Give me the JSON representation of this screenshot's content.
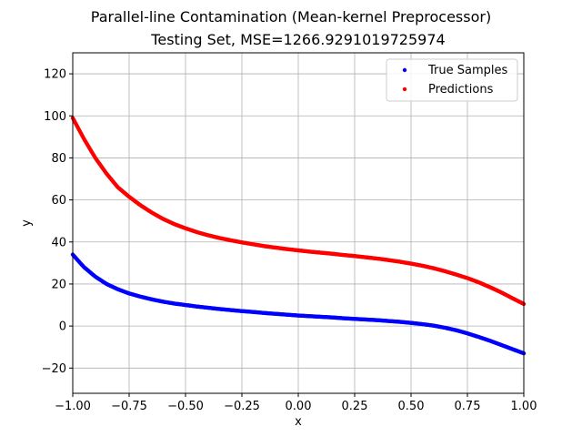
{
  "chart_data": {
    "type": "scatter",
    "title": "Parallel-line Contamination (Mean-kernel Preprocessor)",
    "subtitle": "Testing Set, MSE=1266.9291019725974",
    "xlabel": "x",
    "ylabel": "y",
    "xlim": [
      -1.0,
      1.0
    ],
    "ylim": [
      -32,
      130
    ],
    "x_ticks": [
      -1.0,
      -0.75,
      -0.5,
      -0.25,
      0.0,
      0.25,
      0.5,
      0.75,
      1.0
    ],
    "x_tick_labels": [
      "−1.00",
      "−0.75",
      "−0.50",
      "−0.25",
      "0.00",
      "0.25",
      "0.50",
      "0.75",
      "1.00"
    ],
    "y_ticks": [
      -20,
      0,
      20,
      40,
      60,
      80,
      100,
      120
    ],
    "y_tick_labels": [
      "−20",
      "0",
      "20",
      "40",
      "60",
      "80",
      "100",
      "120"
    ],
    "grid": true,
    "legend_position": "top-right",
    "series": [
      {
        "name": "True Samples",
        "color": "#0000ff",
        "x": [
          -1.0,
          -0.95,
          -0.9,
          -0.85,
          -0.8,
          -0.75,
          -0.7,
          -0.65,
          -0.6,
          -0.55,
          -0.5,
          -0.45,
          -0.4,
          -0.35,
          -0.3,
          -0.25,
          -0.2,
          -0.15,
          -0.1,
          -0.05,
          0.0,
          0.05,
          0.1,
          0.15,
          0.2,
          0.25,
          0.3,
          0.35,
          0.4,
          0.45,
          0.5,
          0.55,
          0.6,
          0.65,
          0.7,
          0.75,
          0.8,
          0.85,
          0.9,
          0.95,
          1.0
        ],
        "y": [
          34,
          28,
          23.5,
          20,
          17.5,
          15.5,
          14,
          12.7,
          11.6,
          10.7,
          10,
          9.3,
          8.7,
          8.1,
          7.6,
          7.1,
          6.7,
          6.2,
          5.8,
          5.4,
          5,
          4.7,
          4.4,
          4.1,
          3.7,
          3.4,
          3.1,
          2.8,
          2.4,
          2,
          1.5,
          0.9,
          0.2,
          -0.8,
          -2,
          -3.5,
          -5.2,
          -7,
          -9,
          -11,
          -13
        ]
      },
      {
        "name": "Predictions",
        "color": "#ff0000",
        "x": [
          -1.0,
          -0.95,
          -0.9,
          -0.85,
          -0.8,
          -0.75,
          -0.7,
          -0.65,
          -0.6,
          -0.55,
          -0.5,
          -0.45,
          -0.4,
          -0.35,
          -0.3,
          -0.25,
          -0.2,
          -0.15,
          -0.1,
          -0.05,
          0.0,
          0.05,
          0.1,
          0.15,
          0.2,
          0.25,
          0.3,
          0.35,
          0.4,
          0.45,
          0.5,
          0.55,
          0.6,
          0.65,
          0.7,
          0.75,
          0.8,
          0.85,
          0.9,
          0.95,
          1.0
        ],
        "y": [
          99,
          89,
          80,
          72.5,
          66,
          61.5,
          57.5,
          54,
          51,
          48.5,
          46.5,
          44.7,
          43.2,
          41.9,
          40.8,
          39.8,
          38.9,
          38,
          37.3,
          36.6,
          36,
          35.4,
          34.9,
          34.4,
          33.8,
          33.3,
          32.7,
          32.1,
          31.4,
          30.6,
          29.7,
          28.7,
          27.5,
          26.1,
          24.5,
          22.8,
          20.8,
          18.5,
          16,
          13.2,
          10.5
        ]
      }
    ]
  }
}
